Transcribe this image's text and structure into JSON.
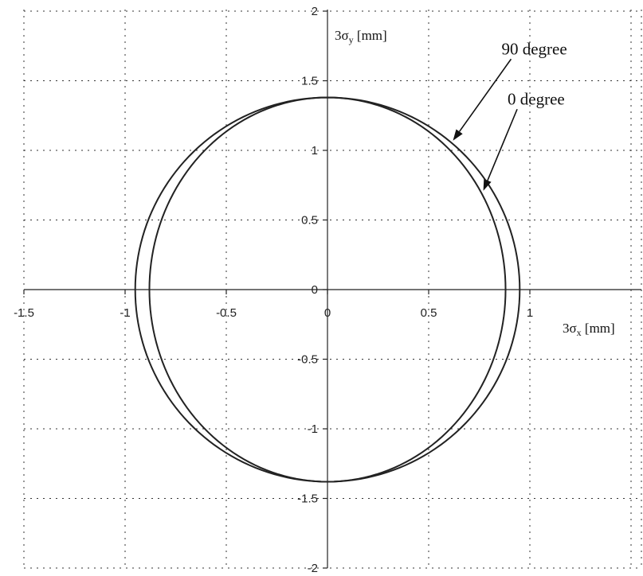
{
  "chart_data": {
    "type": "line",
    "title": "",
    "xlim": [
      -1.5,
      1.5
    ],
    "ylim": [
      -2,
      2
    ],
    "x_ticks": [
      -1.5,
      -1,
      -0.5,
      0,
      0.5,
      1
    ],
    "x_tick_labels": [
      "-1.5",
      "-1",
      "-0.5",
      "0",
      "0.5",
      "1"
    ],
    "y_ticks": [
      -2,
      -1.5,
      -1,
      -0.5,
      0,
      0.5,
      1,
      1.5,
      2
    ],
    "y_tick_labels": [
      "-2",
      "-1.5",
      "-1",
      "-0.5",
      "0",
      "0.5",
      "1",
      "1.5",
      "2"
    ],
    "xlabel": {
      "main": "3σ",
      "sub": "x",
      "unit": " [mm]"
    },
    "ylabel": {
      "main": "3σ",
      "sub": "y",
      "unit": " [mm]"
    },
    "grid": true,
    "grid_style": "dotted",
    "series": [
      {
        "name": "90 degree",
        "shape": "ellipse",
        "center": [
          0,
          0
        ],
        "semi_axis_x": 0.95,
        "semi_axis_y": 1.38,
        "color": "#222222"
      },
      {
        "name": "0 degree",
        "shape": "ellipse",
        "center": [
          0,
          0
        ],
        "semi_axis_x": 0.88,
        "semi_axis_y": 1.38,
        "color": "#222222"
      }
    ],
    "annotations": [
      {
        "text": "90 degree",
        "text_at": [
          0.86,
          1.69
        ],
        "arrow_to": [
          0.62,
          1.07
        ]
      },
      {
        "text": "0 degree",
        "text_at": [
          0.89,
          1.33
        ],
        "arrow_to": [
          0.77,
          0.71
        ]
      }
    ]
  }
}
